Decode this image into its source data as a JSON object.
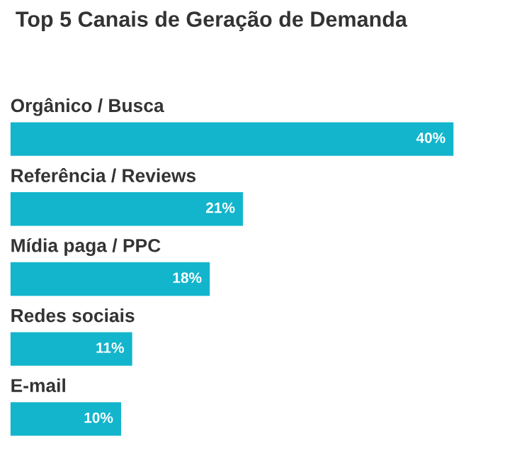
{
  "chart_data": {
    "type": "bar",
    "orientation": "horizontal",
    "title": "Top 5 Canais de Geração de Demanda",
    "categories": [
      "Orgânico / Busca",
      "Referência / Reviews",
      "Mídia paga / PPC",
      "Redes sociais",
      "E-mail"
    ],
    "values": [
      40,
      21,
      18,
      11,
      10
    ],
    "value_labels": [
      "40%",
      "21%",
      "18%",
      "11%",
      "10%"
    ],
    "color": "#13b5cc",
    "tick_labels": false,
    "grid": false,
    "legend": false
  }
}
